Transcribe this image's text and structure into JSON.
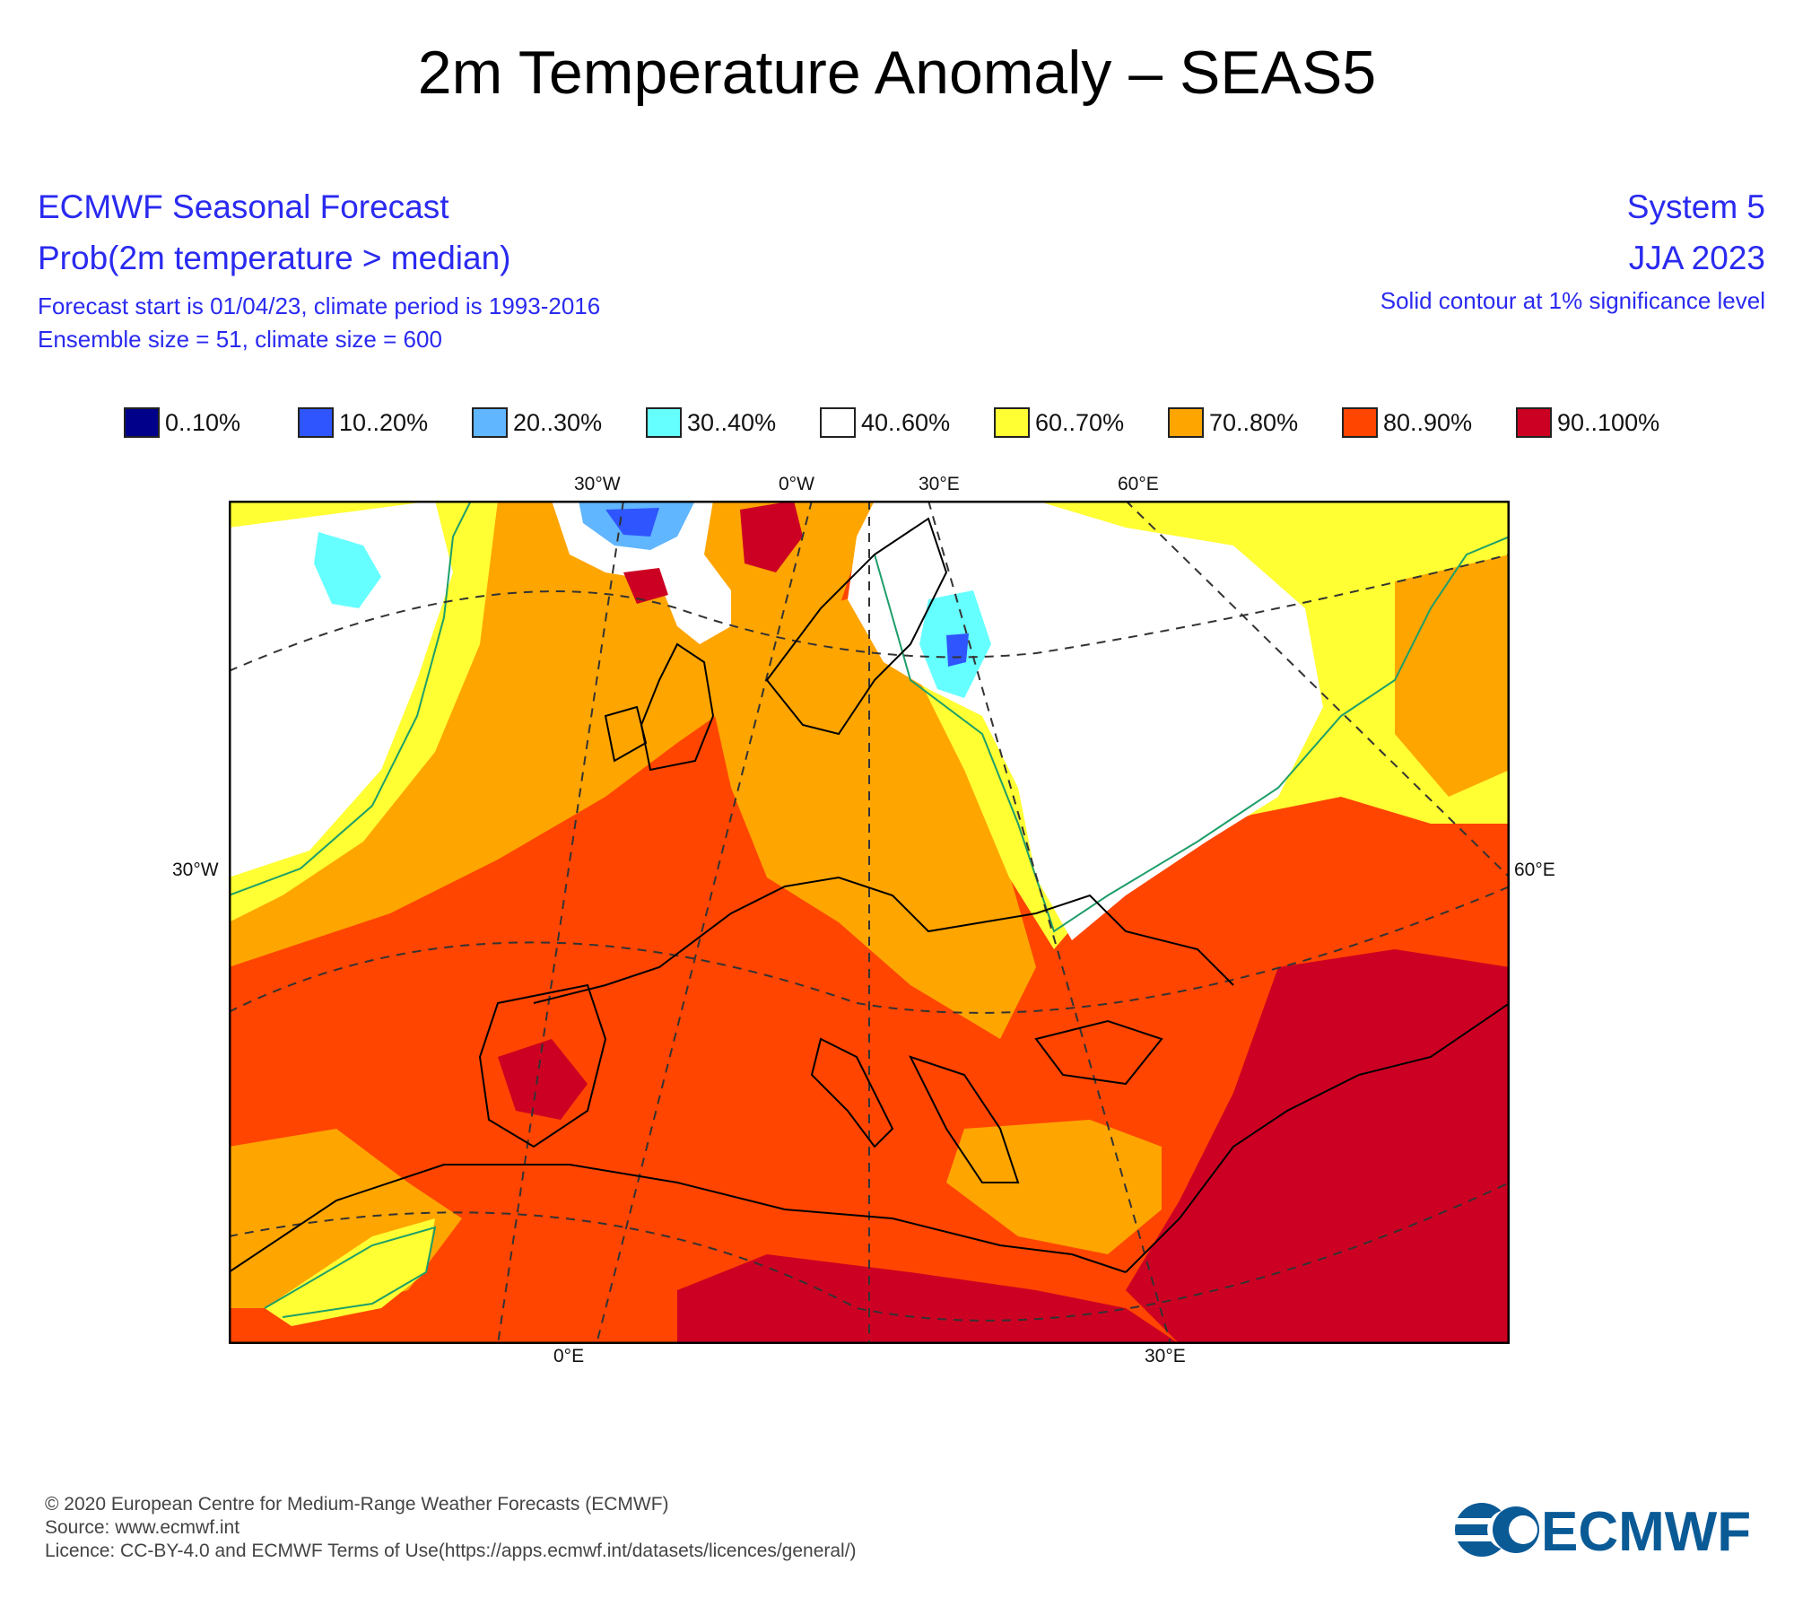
{
  "title": "2m Temperature Anomaly – SEAS5",
  "header_left": {
    "line1": "ECMWF Seasonal Forecast",
    "line2": "Prob(2m temperature > median)",
    "line3": "Forecast start is 01/04/23, climate period is 1993-2016",
    "line4": "Ensemble size = 51, climate size = 600"
  },
  "header_right": {
    "line1": "System 5",
    "line2": "JJA 2023",
    "line3": "Solid contour at 1% significance level"
  },
  "legend": [
    {
      "label": "0..10%",
      "color": "#00008b"
    },
    {
      "label": "10..20%",
      "color": "#2f55ff"
    },
    {
      "label": "20..30%",
      "color": "#60b6ff"
    },
    {
      "label": "30..40%",
      "color": "#66ffff"
    },
    {
      "label": "40..60%",
      "color": "#ffffff"
    },
    {
      "label": "60..70%",
      "color": "#ffff33"
    },
    {
      "label": "70..80%",
      "color": "#ffa500"
    },
    {
      "label": "80..90%",
      "color": "#ff4500"
    },
    {
      "label": "90..100%",
      "color": "#cc0022"
    }
  ],
  "map_labels": {
    "top": [
      "30°W",
      "0°W",
      "30°E",
      "60°E"
    ],
    "left": "30°W",
    "right": "60°E",
    "bottom": [
      "0°E",
      "30°E"
    ]
  },
  "footer": {
    "line1": "© 2020 European Centre for Medium-Range Weather Forecasts (ECMWF)",
    "line2": "Source: www.ecmwf.int",
    "line3": "Licence: CC-BY-4.0 and ECMWF Terms of Use(https://apps.ecmwf.int/datasets/licences/general/)"
  },
  "logo_text": "ECMWF",
  "logo_color": "#0a5a96"
}
